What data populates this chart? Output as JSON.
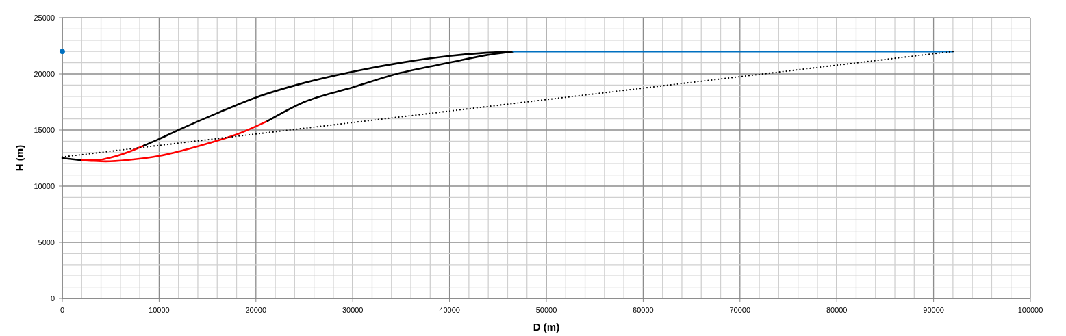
{
  "chart_data": {
    "type": "line",
    "xlabel": "D (m)",
    "ylabel": "H (m)",
    "xlim": [
      0,
      100000
    ],
    "ylim": [
      0,
      25000
    ],
    "grid": true,
    "xticks": [
      0,
      {
        "value": 2000,
        "label": null
      },
      {
        "value": 4000,
        "label": null
      },
      {
        "value": 6000,
        "label": null
      },
      {
        "value": 8000,
        "label": null
      },
      10000,
      {
        "value": 12000,
        "label": null
      },
      {
        "value": 14000,
        "label": null
      },
      {
        "value": 16000,
        "label": null
      },
      {
        "value": 18000,
        "label": null
      },
      20000,
      {
        "value": 22000,
        "label": null
      },
      {
        "value": 24000,
        "label": null
      },
      {
        "value": 26000,
        "label": null
      },
      {
        "value": 28000,
        "label": null
      },
      30000,
      {
        "value": 32000,
        "label": null
      },
      {
        "value": 34000,
        "label": null
      },
      {
        "value": 36000,
        "label": null
      },
      {
        "value": 38000,
        "label": null
      },
      40000,
      {
        "value": 42000,
        "label": null
      },
      {
        "value": 44000,
        "label": null
      },
      {
        "value": 46000,
        "label": null
      },
      {
        "value": 48000,
        "label": null
      },
      50000,
      {
        "value": 52000,
        "label": null
      },
      {
        "value": 54000,
        "label": null
      },
      {
        "value": 56000,
        "label": null
      },
      {
        "value": 58000,
        "label": null
      },
      60000,
      {
        "value": 62000,
        "label": null
      },
      {
        "value": 64000,
        "label": null
      },
      {
        "value": 66000,
        "label": null
      },
      {
        "value": 68000,
        "label": null
      },
      70000,
      {
        "value": 72000,
        "label": null
      },
      {
        "value": 74000,
        "label": null
      },
      {
        "value": 76000,
        "label": null
      },
      {
        "value": 78000,
        "label": null
      },
      80000,
      {
        "value": 82000,
        "label": null
      },
      {
        "value": 84000,
        "label": null
      },
      {
        "value": 86000,
        "label": null
      },
      {
        "value": 88000,
        "label": null
      },
      90000,
      {
        "value": 92000,
        "label": null
      },
      {
        "value": 94000,
        "label": null
      },
      {
        "value": 96000,
        "label": null
      },
      {
        "value": 98000,
        "label": null
      },
      100000
    ],
    "yticks": [
      0,
      {
        "value": 1000,
        "label": null
      },
      {
        "value": 2000,
        "label": null
      },
      {
        "value": 3000,
        "label": null
      },
      {
        "value": 4000,
        "label": null
      },
      5000,
      {
        "value": 6000,
        "label": null
      },
      {
        "value": 7000,
        "label": null
      },
      {
        "value": 8000,
        "label": null
      },
      {
        "value": 9000,
        "label": null
      },
      10000,
      {
        "value": 11000,
        "label": null
      },
      {
        "value": 12000,
        "label": null
      },
      {
        "value": 13000,
        "label": null
      },
      {
        "value": 14000,
        "label": null
      },
      15000,
      {
        "value": 16000,
        "label": null
      },
      {
        "value": 17000,
        "label": null
      },
      {
        "value": 18000,
        "label": null
      },
      {
        "value": 19000,
        "label": null
      },
      20000,
      {
        "value": 21000,
        "label": null
      },
      {
        "value": 22000,
        "label": null
      },
      {
        "value": 23000,
        "label": null
      },
      {
        "value": 24000,
        "label": null
      },
      25000
    ],
    "series": [
      {
        "color": "#000000",
        "x": [
          0,
          2000
        ],
        "values": [
          12500,
          12300
        ]
      },
      {
        "color": "#ff0000",
        "x": [
          2000,
          3000,
          4500,
          7000,
          10000,
          15000,
          18000,
          21200
        ],
        "values": [
          12300,
          12250,
          12200,
          12350,
          12700,
          13800,
          14600,
          15800
        ]
      },
      {
        "color": "#ff0000",
        "x": [
          2000,
          3500,
          5000,
          7000,
          8400
        ],
        "values": [
          12300,
          12300,
          12550,
          13100,
          13600
        ]
      },
      {
        "color": "#000000",
        "x": [
          21200,
          25000,
          30000,
          35000,
          40000,
          44000,
          46600
        ],
        "values": [
          15800,
          17500,
          18800,
          20100,
          21000,
          21700,
          22000
        ]
      },
      {
        "color": "#000000",
        "x": [
          8400,
          10000,
          12000,
          16000,
          20000,
          25000,
          30000,
          35000,
          40000,
          44000,
          46600
        ],
        "values": [
          13600,
          14200,
          15000,
          16500,
          17900,
          19200,
          20200,
          21000,
          21600,
          21900,
          22000
        ]
      },
      {
        "color": "#0070c0",
        "x": [
          46600,
          92000
        ],
        "values": [
          22000,
          22000
        ]
      },
      {
        "color": "#000000",
        "x": [
          0,
          92000
        ],
        "values": [
          12600,
          22000
        ],
        "line_style": "dotted"
      },
      {
        "type": "scatter",
        "color": "#0070c0",
        "x": [
          0
        ],
        "values": [
          22000
        ],
        "marker": "circle"
      }
    ]
  }
}
